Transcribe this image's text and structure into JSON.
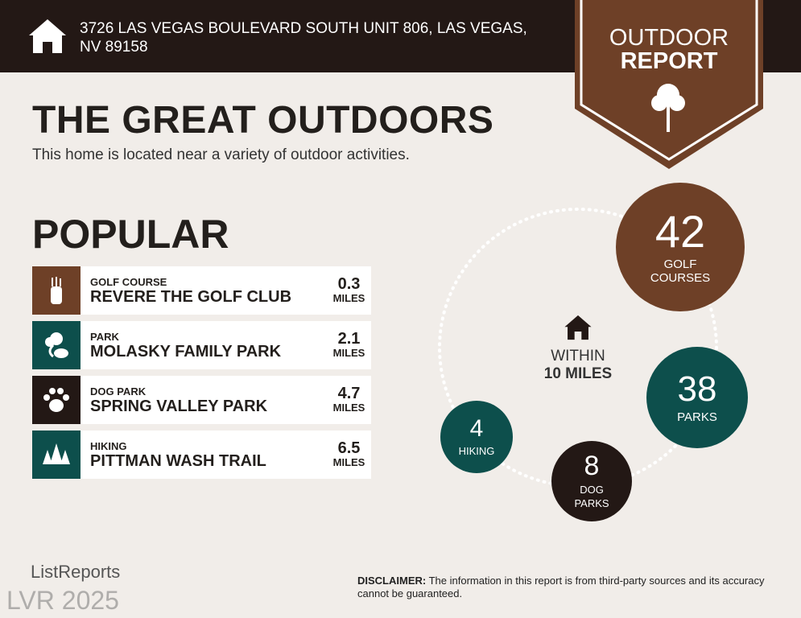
{
  "header": {
    "address": "3726 LAS VEGAS BOULEVARD SOUTH UNIT 806, LAS VEGAS, NV 89158",
    "icon": "house-icon"
  },
  "badge": {
    "line1": "OUTDOOR",
    "line2": "REPORT",
    "icon": "tree-icon",
    "color": "#6e4027"
  },
  "title": "THE GREAT OUTDOORS",
  "subtitle": "This home is located near a variety of outdoor activities.",
  "popular": {
    "heading": "POPULAR",
    "items": [
      {
        "category": "GOLF COURSE",
        "name": "REVERE THE GOLF CLUB",
        "distance": "0.3",
        "unit": "MILES",
        "icon": "golf-bag-icon",
        "color": "#6e4027"
      },
      {
        "category": "PARK",
        "name": "MOLASKY FAMILY PARK",
        "distance": "2.1",
        "unit": "MILES",
        "icon": "park-tree-icon",
        "color": "#0d4f4c"
      },
      {
        "category": "DOG PARK",
        "name": "SPRING VALLEY PARK",
        "distance": "4.7",
        "unit": "MILES",
        "icon": "paw-icon",
        "color": "#231815"
      },
      {
        "category": "HIKING",
        "name": "PITTMAN WASH TRAIL",
        "distance": "6.5",
        "unit": "MILES",
        "icon": "pine-trees-icon",
        "color": "#0d4f4c"
      }
    ]
  },
  "radius": {
    "line1": "WITHIN",
    "line2": "10 MILES",
    "icon": "house-icon"
  },
  "counts": [
    {
      "value": "42",
      "label1": "GOLF",
      "label2": "COURSES",
      "color": "#6e4027"
    },
    {
      "value": "38",
      "label1": "PARKS",
      "label2": "",
      "color": "#0d4f4c"
    },
    {
      "value": "8",
      "label1": "DOG",
      "label2": "PARKS",
      "color": "#231815"
    },
    {
      "value": "4",
      "label1": "HIKING",
      "label2": "",
      "color": "#0d4f4c"
    }
  ],
  "footer": {
    "logo": "ListReports",
    "disclaimer_label": "DISCLAIMER:",
    "disclaimer": " The information in this report is from third-party sources and its accuracy cannot be guaranteed.",
    "watermark": "LVR 2025"
  }
}
